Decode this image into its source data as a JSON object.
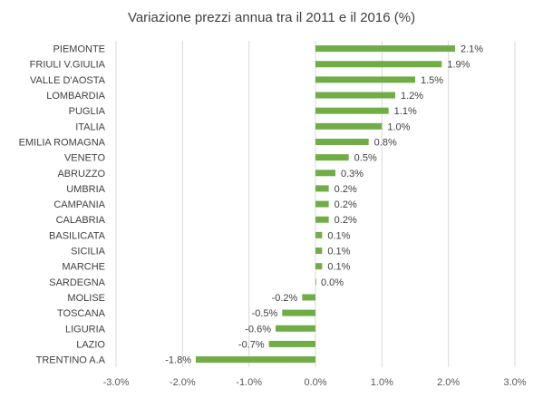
{
  "chart_data": {
    "type": "bar",
    "orientation": "horizontal",
    "title": "Variazione prezzi annua tra il 2011 e il 2016 (%)",
    "xlabel": "",
    "ylabel": "",
    "xlim": [
      -3.0,
      3.0
    ],
    "x_ticks": [
      -3.0,
      -2.0,
      -1.0,
      0.0,
      1.0,
      2.0,
      3.0
    ],
    "x_tick_labels": [
      "-3.0%",
      "-2.0%",
      "-1.0%",
      "0.0%",
      "1.0%",
      "2.0%",
      "3.0%"
    ],
    "grid": "vertical",
    "legend": "none",
    "bar_color": "#70ad47",
    "categories": [
      "PIEMONTE",
      "FRIULI V.GIULIA",
      "VALLE D'AOSTA",
      "LOMBARDIA",
      "PUGLIA",
      "ITALIA",
      "EMILIA ROMAGNA",
      "VENETO",
      "ABRUZZO",
      "UMBRIA",
      "CAMPANIA",
      "CALABRIA",
      "BASILICATA",
      "SICILIA",
      "MARCHE",
      "SARDEGNA",
      "MOLISE",
      "TOSCANA",
      "LIGURIA",
      "LAZIO",
      "TRENTINO A.A"
    ],
    "values": [
      2.1,
      1.9,
      1.5,
      1.2,
      1.1,
      1.0,
      0.8,
      0.5,
      0.3,
      0.2,
      0.2,
      0.2,
      0.1,
      0.1,
      0.1,
      0.0,
      -0.2,
      -0.5,
      -0.6,
      -0.7,
      -1.8
    ],
    "value_labels": [
      "2.1%",
      "1.9%",
      "1.5%",
      "1.2%",
      "1.1%",
      "1.0%",
      "0.8%",
      "0.5%",
      "0.3%",
      "0.2%",
      "0.2%",
      "0.2%",
      "0.1%",
      "0.1%",
      "0.1%",
      "0.0%",
      "-0.2%",
      "-0.5%",
      "-0.6%",
      "-0.7%",
      "-1.8%"
    ]
  }
}
